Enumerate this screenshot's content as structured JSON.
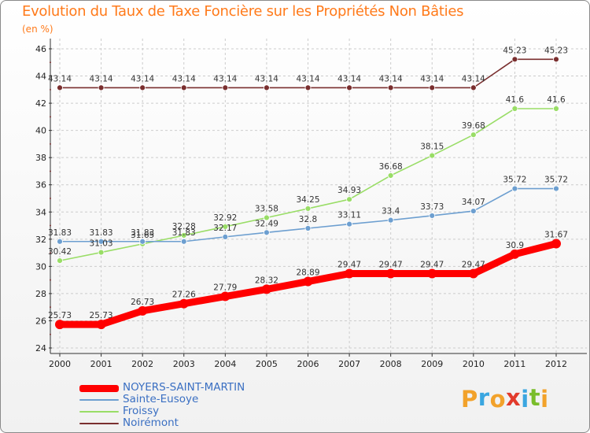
{
  "header": {
    "title": "Evolution du Taux de Taxe Foncière sur les Propriétés Non Bâties",
    "unit": "(en %)"
  },
  "logo": {
    "text": "Proxiti"
  },
  "colors": {
    "title": "#ff7a1a",
    "legend_text": "#3a6fc2",
    "grid": "#cccccc",
    "axis": "#333333",
    "logo_letters": [
      "#f2a22b",
      "#3aa6e0",
      "#f2a22b",
      "#e23b2c",
      "#3aa6e0",
      "#7abd2b",
      "#f2a22b"
    ]
  },
  "chart_data": {
    "type": "line",
    "title": "Evolution du Taux de Taxe Foncière sur les Propriétés Non Bâties",
    "ylabel": "(en %)",
    "xlabel": "",
    "x": [
      "2000",
      "2001",
      "2002",
      "2003",
      "2004",
      "2005",
      "2006",
      "2007",
      "2008",
      "2009",
      "2010",
      "2011",
      "2012"
    ],
    "ylim": [
      24,
      46
    ],
    "yticks": [
      24,
      26,
      28,
      30,
      32,
      34,
      36,
      38,
      40,
      42,
      44,
      46
    ],
    "grid": "horizontal dashed",
    "legend_position": "bottom-left",
    "series": [
      {
        "name": "NOYERS-SAINT-MARTIN",
        "color": "#ff0000",
        "values": [
          25.73,
          25.73,
          26.73,
          27.26,
          27.79,
          28.32,
          28.89,
          29.47,
          29.47,
          29.47,
          29.47,
          30.9,
          31.67
        ],
        "labels": [
          "25.73",
          "25.73",
          "26.73",
          "27.26",
          "27.79",
          "28.32",
          "28.89",
          "29.47",
          "29.47",
          "29.47",
          "29.47",
          "30.9",
          "31.67"
        ]
      },
      {
        "name": "Sainte-Eusoye",
        "color": "#6d9fd0",
        "values": [
          31.83,
          31.83,
          31.83,
          31.83,
          32.17,
          32.49,
          32.8,
          33.11,
          33.4,
          33.73,
          34.07,
          35.72,
          35.72
        ],
        "labels": [
          "31.83",
          "31.83",
          "31.83",
          "31.83",
          "32.17",
          "32.49",
          "32.8",
          "33.11",
          "33.4",
          "33.73",
          "34.07",
          "35.72",
          "35.72"
        ]
      },
      {
        "name": "Froissy",
        "color": "#99dd66",
        "values": [
          30.42,
          31.03,
          31.65,
          32.28,
          32.92,
          33.58,
          34.25,
          34.93,
          36.68,
          38.15,
          39.68,
          41.6,
          41.6
        ],
        "labels": [
          "30.42",
          "31.03",
          "31.65",
          "32.28",
          "32.92",
          "33.58",
          "34.25",
          "34.93",
          "36.68",
          "38.15",
          "39.68",
          "41.6",
          "41.6"
        ]
      },
      {
        "name": "Noirémont",
        "color": "#7a2f2f",
        "values": [
          43.14,
          43.14,
          43.14,
          43.14,
          43.14,
          43.14,
          43.14,
          43.14,
          43.14,
          43.14,
          43.14,
          45.23,
          45.23
        ],
        "labels": [
          "43.14",
          "43.14",
          "43.14",
          "43.14",
          "43.14",
          "43.14",
          "43.14",
          "43.14",
          "43.14",
          "43.14",
          "43.14",
          "45.23",
          "45.23"
        ]
      }
    ]
  }
}
